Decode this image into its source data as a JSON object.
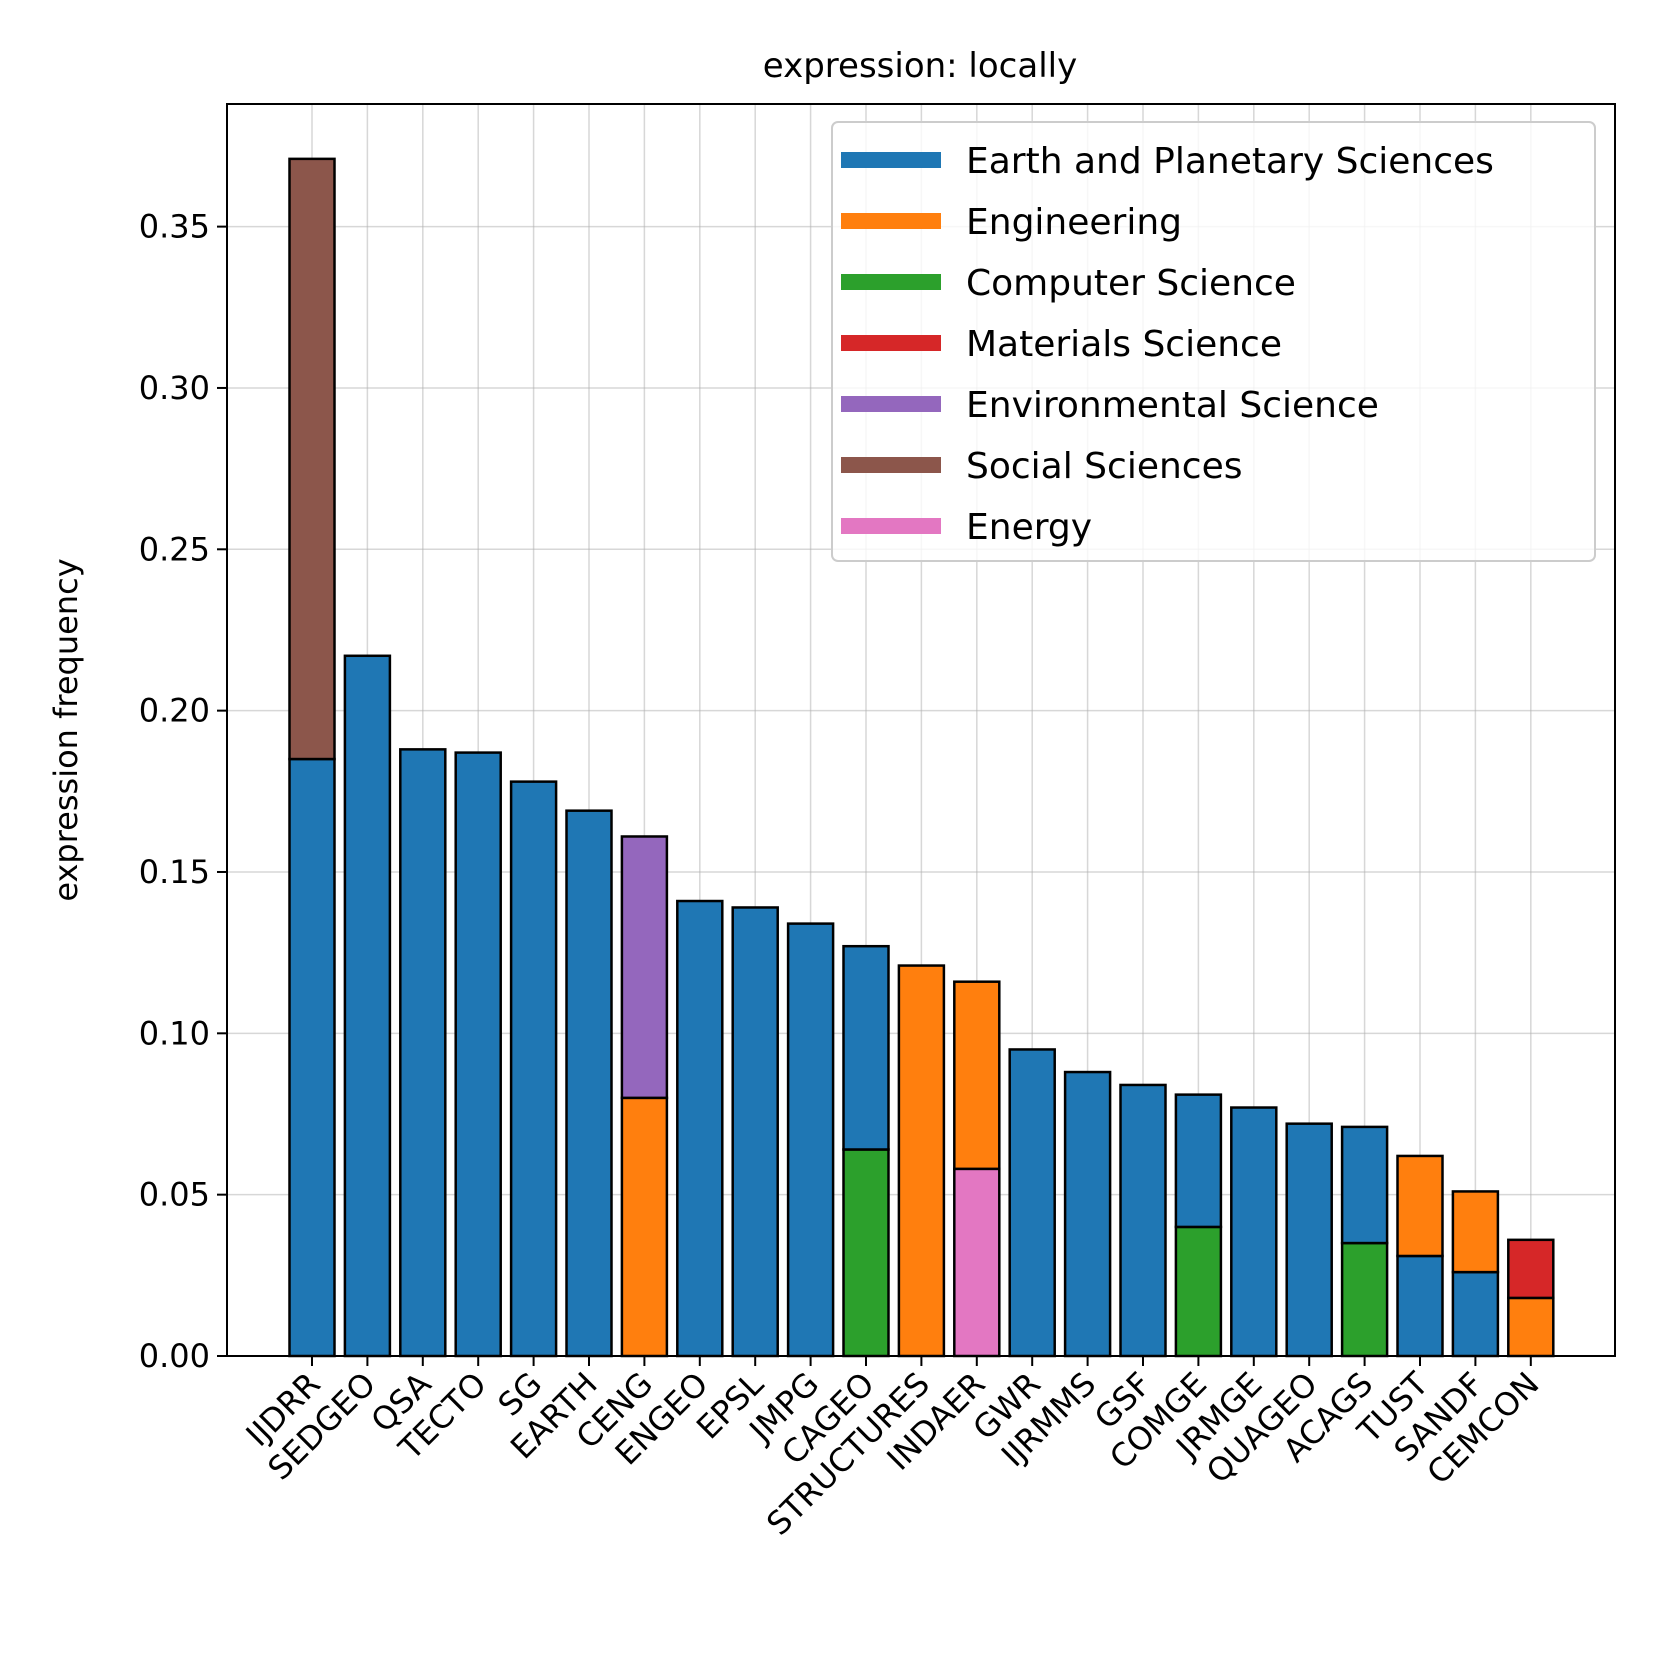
{
  "chart_data": {
    "type": "bar",
    "stacked": true,
    "title": "expression: locally",
    "xlabel": "",
    "ylabel": "expression frequency",
    "ylim": [
      0,
      0.388
    ],
    "yticks": [
      "0.00",
      "0.05",
      "0.10",
      "0.15",
      "0.20",
      "0.25",
      "0.30",
      "0.35"
    ],
    "grid": true,
    "legend_position": "top-right",
    "categories": [
      "IJDRR",
      "SEDGEO",
      "QSA",
      "TECTO",
      "SG",
      "EARTH",
      "CENG",
      "ENGEO",
      "EPSL",
      "JMPG",
      "CAGEO",
      "STRUCTURES",
      "INDAER",
      "GWR",
      "IJRMMS",
      "GSF",
      "COMGE",
      "JRMGE",
      "QUAGEO",
      "ACAGS",
      "TUST",
      "SANDF",
      "CEMCON"
    ],
    "legend": [
      {
        "name": "Earth and Planetary Sciences",
        "color": "#1f77b4"
      },
      {
        "name": "Engineering",
        "color": "#ff7f0e"
      },
      {
        "name": "Computer Science",
        "color": "#2ca02c"
      },
      {
        "name": "Materials Science",
        "color": "#d62728"
      },
      {
        "name": "Environmental Science",
        "color": "#9467bd"
      },
      {
        "name": "Social Sciences",
        "color": "#8c564b"
      },
      {
        "name": "Energy",
        "color": "#e377c2"
      }
    ],
    "stacks": [
      [
        {
          "series": "Earth and Planetary Sciences",
          "value": 0.185
        },
        {
          "series": "Social Sciences",
          "value": 0.186
        }
      ],
      [
        {
          "series": "Earth and Planetary Sciences",
          "value": 0.217
        }
      ],
      [
        {
          "series": "Earth and Planetary Sciences",
          "value": 0.188
        }
      ],
      [
        {
          "series": "Earth and Planetary Sciences",
          "value": 0.187
        }
      ],
      [
        {
          "series": "Earth and Planetary Sciences",
          "value": 0.178
        }
      ],
      [
        {
          "series": "Earth and Planetary Sciences",
          "value": 0.169
        }
      ],
      [
        {
          "series": "Engineering",
          "value": 0.08
        },
        {
          "series": "Environmental Science",
          "value": 0.081
        }
      ],
      [
        {
          "series": "Earth and Planetary Sciences",
          "value": 0.141
        }
      ],
      [
        {
          "series": "Earth and Planetary Sciences",
          "value": 0.139
        }
      ],
      [
        {
          "series": "Earth and Planetary Sciences",
          "value": 0.134
        }
      ],
      [
        {
          "series": "Computer Science",
          "value": 0.064
        },
        {
          "series": "Earth and Planetary Sciences",
          "value": 0.063
        }
      ],
      [
        {
          "series": "Engineering",
          "value": 0.121
        }
      ],
      [
        {
          "series": "Energy",
          "value": 0.058
        },
        {
          "series": "Engineering",
          "value": 0.058
        }
      ],
      [
        {
          "series": "Earth and Planetary Sciences",
          "value": 0.095
        }
      ],
      [
        {
          "series": "Earth and Planetary Sciences",
          "value": 0.088
        }
      ],
      [
        {
          "series": "Earth and Planetary Sciences",
          "value": 0.084
        }
      ],
      [
        {
          "series": "Computer Science",
          "value": 0.04
        },
        {
          "series": "Earth and Planetary Sciences",
          "value": 0.041
        }
      ],
      [
        {
          "series": "Earth and Planetary Sciences",
          "value": 0.077
        }
      ],
      [
        {
          "series": "Earth and Planetary Sciences",
          "value": 0.072
        }
      ],
      [
        {
          "series": "Computer Science",
          "value": 0.035
        },
        {
          "series": "Earth and Planetary Sciences",
          "value": 0.036
        }
      ],
      [
        {
          "series": "Earth and Planetary Sciences",
          "value": 0.031
        },
        {
          "series": "Engineering",
          "value": 0.031
        }
      ],
      [
        {
          "series": "Earth and Planetary Sciences",
          "value": 0.026
        },
        {
          "series": "Engineering",
          "value": 0.025
        }
      ],
      [
        {
          "series": "Engineering",
          "value": 0.018
        },
        {
          "series": "Materials Science",
          "value": 0.018
        }
      ]
    ]
  }
}
